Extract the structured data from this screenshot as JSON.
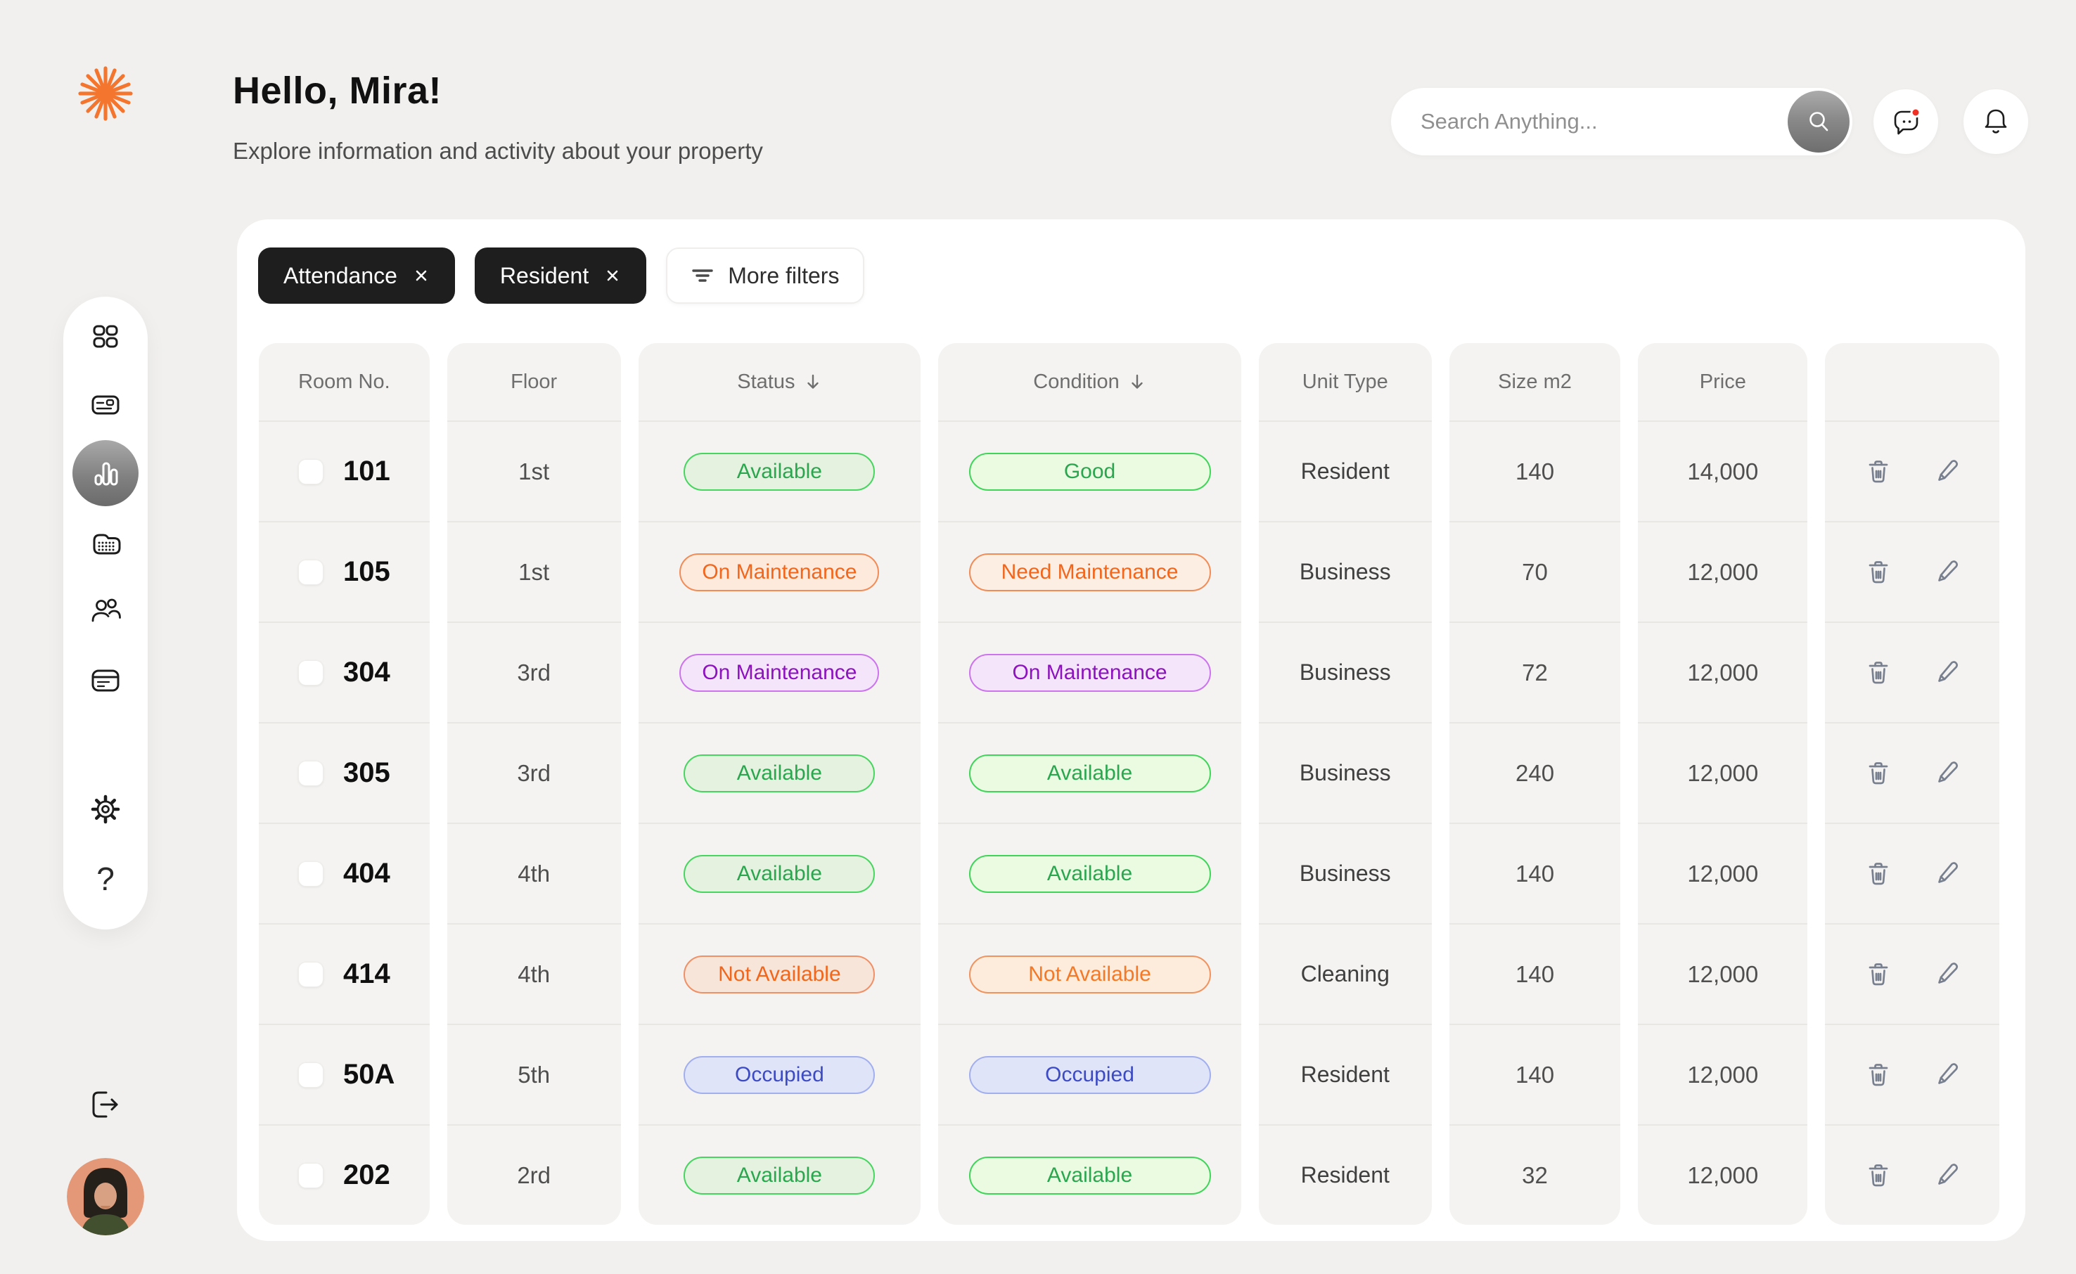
{
  "header": {
    "greeting": "Hello, Mira!",
    "subtitle": "Explore information and activity about your property",
    "search_placeholder": "Search Anything...",
    "icons": [
      "search-icon",
      "chat-icon",
      "bell-icon"
    ],
    "chat_has_notification": true
  },
  "sidebar": {
    "items": [
      {
        "icon": "grid-icon",
        "active": false
      },
      {
        "icon": "card-icon",
        "active": false
      },
      {
        "icon": "bar-chart-icon",
        "active": true
      },
      {
        "icon": "building-icon",
        "active": false
      },
      {
        "icon": "users-icon",
        "active": false
      },
      {
        "icon": "calendar-icon",
        "active": false
      },
      {
        "icon": "gear-icon",
        "active": false
      },
      {
        "icon": "help-icon",
        "active": false
      }
    ],
    "help_glyph": "?",
    "footer_icons": [
      "logout-icon",
      "avatar"
    ]
  },
  "filters": {
    "chips": [
      {
        "label": "Attendance",
        "close_icon": "close-icon"
      },
      {
        "label": "Resident",
        "close_icon": "close-icon"
      }
    ],
    "more_filters_label": "More filters",
    "more_filters_icon": "filter-icon"
  },
  "table": {
    "columns": [
      {
        "key": "room",
        "label": "Room No."
      },
      {
        "key": "floor",
        "label": "Floor"
      },
      {
        "key": "status",
        "label": "Status",
        "sortable": true
      },
      {
        "key": "condition",
        "label": "Condition",
        "sortable": true
      },
      {
        "key": "unit_type",
        "label": "Unit Type"
      },
      {
        "key": "size",
        "label": "Size m2"
      },
      {
        "key": "price",
        "label": "Price"
      },
      {
        "key": "actions",
        "label": ""
      }
    ],
    "row_action_icons": [
      "trash-icon",
      "pencil-icon"
    ],
    "rows": [
      {
        "room": "101",
        "floor": "1st",
        "status": {
          "label": "Available",
          "variant": "available-status"
        },
        "condition": {
          "label": "Good",
          "variant": "available-cond"
        },
        "unit_type": "Resident",
        "size": "140",
        "price": "14,000"
      },
      {
        "room": "105",
        "floor": "1st",
        "status": {
          "label": "On Maintenance",
          "variant": "maintenance-orange-status"
        },
        "condition": {
          "label": "Need Maintenance",
          "variant": "maintenance-orange-cond"
        },
        "unit_type": "Business",
        "size": "70",
        "price": "12,000"
      },
      {
        "room": "304",
        "floor": "3rd",
        "status": {
          "label": "On Maintenance",
          "variant": "maintenance-purple"
        },
        "condition": {
          "label": "On Maintenance",
          "variant": "maintenance-purple"
        },
        "unit_type": "Business",
        "size": "72",
        "price": "12,000"
      },
      {
        "room": "305",
        "floor": "3rd",
        "status": {
          "label": "Available",
          "variant": "available-status"
        },
        "condition": {
          "label": "Available",
          "variant": "available-cond"
        },
        "unit_type": "Business",
        "size": "240",
        "price": "12,000"
      },
      {
        "room": "404",
        "floor": "4th",
        "status": {
          "label": "Available",
          "variant": "available-status"
        },
        "condition": {
          "label": "Available",
          "variant": "available-cond"
        },
        "unit_type": "Business",
        "size": "140",
        "price": "12,000"
      },
      {
        "room": "414",
        "floor": "4th",
        "status": {
          "label": "Not Available",
          "variant": "notavailable-status"
        },
        "condition": {
          "label": "Not Available",
          "variant": "notavailable-cond"
        },
        "unit_type": "Cleaning",
        "size": "140",
        "price": "12,000"
      },
      {
        "room": "50A",
        "floor": "5th",
        "status": {
          "label": "Occupied",
          "variant": "occupied"
        },
        "condition": {
          "label": "Occupied",
          "variant": "occupied"
        },
        "unit_type": "Resident",
        "size": "140",
        "price": "12,000"
      },
      {
        "room": "202",
        "floor": "2rd",
        "status": {
          "label": "Available",
          "variant": "available-status"
        },
        "condition": {
          "label": "Available",
          "variant": "available-cond"
        },
        "unit_type": "Resident",
        "size": "32",
        "price": "12,000"
      }
    ]
  },
  "palette": {
    "page_bg": "#f1f0ee",
    "card_bg": "#ffffff",
    "column_bg": "#f4f3f1",
    "brand_orange": "#f4762e",
    "chip_dark": "#1e1e1e",
    "notification_red": "#ee3124",
    "status_green_text": "#2aa64e",
    "status_green_border": "#42d55c",
    "status_orange_text": "#f2661c",
    "status_purple_text": "#8c12bd",
    "status_blue_text": "#3c4bc4",
    "action_icon_gray": "#78808f"
  }
}
